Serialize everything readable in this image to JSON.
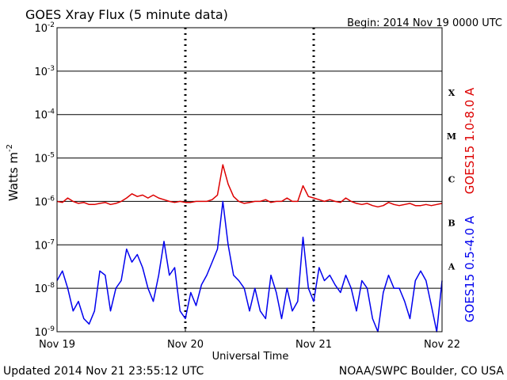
{
  "chart_data": {
    "type": "line",
    "title": "GOES Xray Flux (5 minute data)",
    "begin_label": "Begin:  2014 Nov 19 0000 UTC",
    "xlabel": "Universal Time",
    "ylabel": "Watts m",
    "ylabel_superscript": "-2",
    "yscale": "log",
    "ylim": [
      1e-09,
      0.01
    ],
    "xlim": [
      0,
      72
    ],
    "x_unit": "hours since 2014 Nov 19 0000 UTC",
    "grid": true,
    "x_ticks": [
      {
        "value": 0,
        "label": "Nov 19"
      },
      {
        "value": 24,
        "label": "Nov 20"
      },
      {
        "value": 48,
        "label": "Nov 21"
      },
      {
        "value": 72,
        "label": "Nov 22"
      }
    ],
    "y_ticks": [
      {
        "value": 1e-09,
        "base": "10",
        "exp": "-9"
      },
      {
        "value": 1e-08,
        "base": "10",
        "exp": "-8"
      },
      {
        "value": 1e-07,
        "base": "10",
        "exp": "-7"
      },
      {
        "value": 1e-06,
        "base": "10",
        "exp": "-6"
      },
      {
        "value": 1e-05,
        "base": "10",
        "exp": "-5"
      },
      {
        "value": 0.0001,
        "base": "10",
        "exp": "-4"
      },
      {
        "value": 0.001,
        "base": "10",
        "exp": "-3"
      },
      {
        "value": 0.01,
        "base": "10",
        "exp": "-2"
      }
    ],
    "flare_classes": [
      {
        "label": "A",
        "value": 3.2e-08
      },
      {
        "label": "B",
        "value": 3.2e-07
      },
      {
        "label": "C",
        "value": 3.2e-06
      },
      {
        "label": "M",
        "value": 3.2e-05
      },
      {
        "label": "X",
        "value": 0.00032
      }
    ],
    "series": [
      {
        "name": "GOES15 1.0-8.0 A",
        "color": "#dd0000",
        "x": [
          0,
          1,
          2,
          3,
          4,
          5,
          6,
          7,
          8,
          9,
          10,
          11,
          12,
          13,
          14,
          15,
          16,
          17,
          18,
          19,
          20,
          21,
          22,
          23,
          24,
          25,
          26,
          27,
          28,
          29,
          30,
          31,
          32,
          33,
          34,
          35,
          36,
          37,
          38,
          39,
          40,
          41,
          42,
          43,
          44,
          45,
          46,
          47,
          48,
          49,
          50,
          51,
          52,
          53,
          54,
          55,
          56,
          57,
          58,
          59,
          60,
          61,
          62,
          63,
          64,
          65,
          66,
          67,
          68,
          69,
          70,
          71,
          72
        ],
        "values": [
          1e-06,
          9.5e-07,
          1.2e-06,
          1e-06,
          9e-07,
          9.5e-07,
          8.5e-07,
          8.5e-07,
          9e-07,
          9.5e-07,
          8.5e-07,
          9e-07,
          1e-06,
          1.2e-06,
          1.5e-06,
          1.3e-06,
          1.4e-06,
          1.2e-06,
          1.4e-06,
          1.2e-06,
          1.1e-06,
          1e-06,
          9.5e-07,
          1e-06,
          9.5e-07,
          9.5e-07,
          1e-06,
          1e-06,
          1e-06,
          1.1e-06,
          1.4e-06,
          7e-06,
          2.5e-06,
          1.3e-06,
          1e-06,
          9e-07,
          9.5e-07,
          1e-06,
          1e-06,
          1.1e-06,
          9.5e-07,
          1e-06,
          1e-06,
          1.2e-06,
          1e-06,
          1e-06,
          2.3e-06,
          1.3e-06,
          1.2e-06,
          1.1e-06,
          1e-06,
          1.1e-06,
          1e-06,
          9.5e-07,
          1.2e-06,
          1e-06,
          9e-07,
          8.5e-07,
          9e-07,
          8e-07,
          7.5e-07,
          8e-07,
          9.5e-07,
          8.5e-07,
          8e-07,
          8.5e-07,
          9e-07,
          8e-07,
          8e-07,
          8.5e-07,
          8e-07,
          8.5e-07,
          9e-07
        ]
      },
      {
        "name": "GOES15 0.5-4.0 A",
        "color": "#0000ee",
        "x": [
          0,
          1,
          2,
          3,
          4,
          5,
          6,
          7,
          8,
          9,
          10,
          11,
          12,
          13,
          14,
          15,
          16,
          17,
          18,
          19,
          20,
          21,
          22,
          23,
          24,
          25,
          26,
          27,
          28,
          29,
          30,
          31,
          32,
          33,
          34,
          35,
          36,
          37,
          38,
          39,
          40,
          41,
          42,
          43,
          44,
          45,
          46,
          47,
          48,
          49,
          50,
          51,
          52,
          53,
          54,
          55,
          56,
          57,
          58,
          59,
          60,
          61,
          62,
          63,
          64,
          65,
          66,
          67,
          68,
          69,
          70,
          71,
          72
        ],
        "values": [
          1.5e-08,
          2.5e-08,
          1e-08,
          3e-09,
          5e-09,
          2e-09,
          1.5e-09,
          3e-09,
          2.5e-08,
          2e-08,
          3e-09,
          1e-08,
          1.5e-08,
          8e-08,
          4e-08,
          6e-08,
          3e-08,
          1e-08,
          5e-09,
          2e-08,
          1.2e-07,
          2e-08,
          3e-08,
          3e-09,
          2e-09,
          8e-09,
          4e-09,
          1.2e-08,
          2e-08,
          4e-08,
          8e-08,
          1e-06,
          1e-07,
          2e-08,
          1.5e-08,
          1e-08,
          3e-09,
          1e-08,
          3e-09,
          2e-09,
          2e-08,
          8e-09,
          2e-09,
          1e-08,
          3e-09,
          5e-09,
          1.5e-07,
          1e-08,
          5e-09,
          3e-08,
          1.5e-08,
          2e-08,
          1.2e-08,
          8e-09,
          2e-08,
          1e-08,
          3e-09,
          1.5e-08,
          1e-08,
          2e-09,
          1e-09,
          8e-09,
          2e-08,
          1e-08,
          1e-08,
          5e-09,
          2e-09,
          1.5e-08,
          2.5e-08,
          1.5e-08,
          4e-09,
          1e-09,
          1.5e-08
        ]
      }
    ]
  },
  "footer": {
    "updated": "Updated 2014 Nov 21 23:55:12 UTC",
    "credit": "NOAA/SWPC Boulder, CO USA"
  }
}
